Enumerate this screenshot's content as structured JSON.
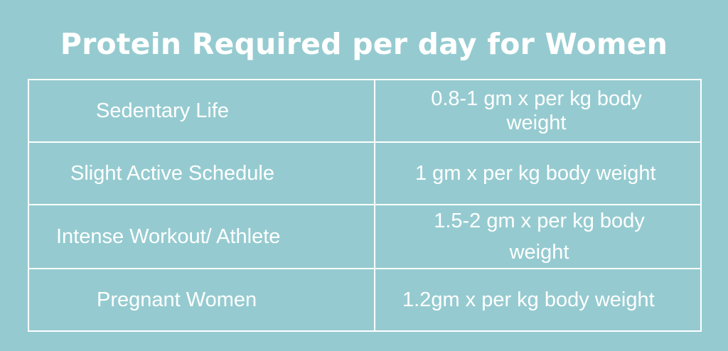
{
  "title": "Protein Required per day for Women",
  "rows": [
    {
      "category": "Sedentary Life",
      "requirement": "0.8-1 gm x per kg body weight"
    },
    {
      "category": "Slight Active Schedule",
      "requirement": "1 gm x per kg body weight"
    },
    {
      "category": "Intense Workout/ Athlete",
      "requirement": "1.5-2 gm x per kg body weight"
    },
    {
      "category": "Pregnant Women",
      "requirement": "1.2gm x per kg body weight"
    }
  ],
  "colors": {
    "background": "#95cbd0",
    "text": "#ffffff",
    "border": "#ffffff"
  }
}
